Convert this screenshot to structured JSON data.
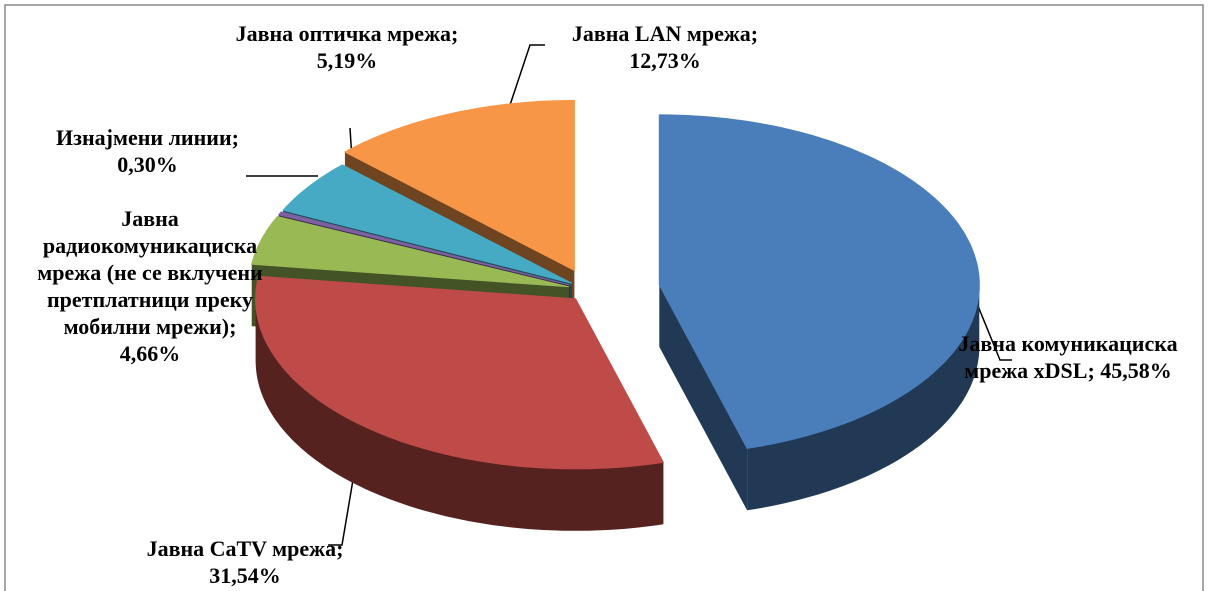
{
  "chart_data": {
    "type": "pie",
    "categories": [
      "Јавна комуникациска мрежа xDSL;",
      "Јавна CaTV мрежа;",
      "Јавна радиокомуникациска мрежа (не се вклучени претплатници преку мобилни мрежи);",
      "Изнајмени линии;",
      "Јавна оптичка мрежа;",
      "Јавна LAN мрежа;"
    ],
    "values": [
      45.58,
      31.54,
      4.66,
      0.3,
      5.19,
      12.73
    ],
    "value_labels": [
      "45,58%",
      "31,54%",
      "4,66%",
      "0,30%",
      "5,19%",
      "12,73%"
    ],
    "colors": [
      "#4a7ebb",
      "#be4b48",
      "#98b954",
      "#7d60a0",
      "#46aac5",
      "#f79646"
    ]
  }
}
